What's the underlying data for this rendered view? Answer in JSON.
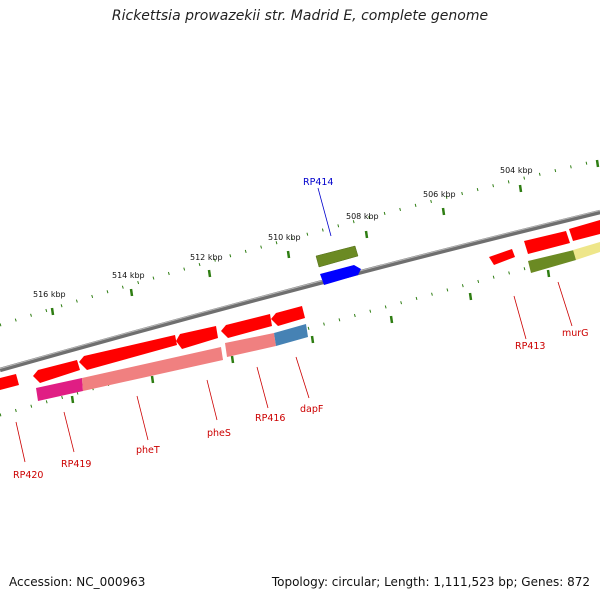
{
  "title": "Rickettsia prowazekii str. Madrid E, complete genome",
  "footer": {
    "accession": "Accession: NC_000963",
    "stats": "Topology: circular; Length: 1,111,523 bp; Genes: 872"
  },
  "colors": {
    "backbone": "#777777",
    "tick": "#2e7d12",
    "gene_red": "#ff0000",
    "gene_olive": "#6b8a23",
    "gene_blue": "#0000ff",
    "gene_pink": "#f08080",
    "gene_magenta": "#e01e84",
    "gene_steel": "#4682b4",
    "gene_khaki": "#eee68a",
    "label_red": "#cc0000",
    "label_blue": "#0000cc"
  },
  "kbp_labels": [
    "516 kbp",
    "514 kbp",
    "512 kbp",
    "510 kbp",
    "508 kbp",
    "506 kbp",
    "504 kbp"
  ],
  "gene_labels": [
    "RP414",
    "RP413",
    "murG",
    "dapF",
    "RP416",
    "pheS",
    "pheT",
    "RP419",
    "RP420"
  ]
}
